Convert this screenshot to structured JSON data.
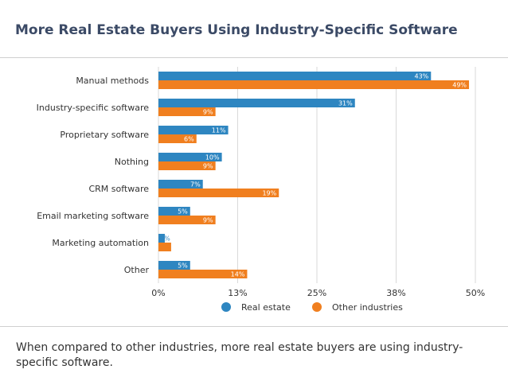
{
  "page": {
    "title": "More Real Estate Buyers Using Industry-Specific Software",
    "caption": "When compared to other industries, more real estate buyers are using industry-specific software."
  },
  "colors": {
    "real_estate": "#2e86c1",
    "other_industries": "#f07f1f",
    "grid": "#d9d9d9",
    "axis_text": "#333333"
  },
  "chart_data": {
    "type": "bar",
    "orientation": "horizontal",
    "title": "More Real Estate Buyers Using Industry-Specific Software",
    "categories": [
      "Manual methods",
      "Industry-specific software",
      "Proprietary software",
      "Nothing",
      "CRM software",
      "Email marketing software",
      "Marketing automation",
      "Other"
    ],
    "series": [
      {
        "name": "Real estate",
        "values": [
          43,
          31,
          11,
          10,
          7,
          5,
          1,
          5
        ],
        "labels": [
          "43%",
          "31%",
          "11%",
          "10%",
          "7%",
          "5%",
          "1%",
          "5%"
        ]
      },
      {
        "name": "Other industries",
        "values": [
          49,
          9,
          6,
          9,
          19,
          9,
          2,
          14
        ],
        "labels": [
          "49%",
          "9%",
          "6%",
          "9%",
          "19%",
          "9%",
          "2%",
          "14%"
        ]
      }
    ],
    "xlim": [
      0,
      50
    ],
    "xticks": [
      0,
      12.5,
      25,
      37.5,
      50
    ],
    "xtick_labels": [
      "0%",
      "13%",
      "25%",
      "38%",
      "50%"
    ],
    "grid": true,
    "legend_position": "bottom"
  }
}
